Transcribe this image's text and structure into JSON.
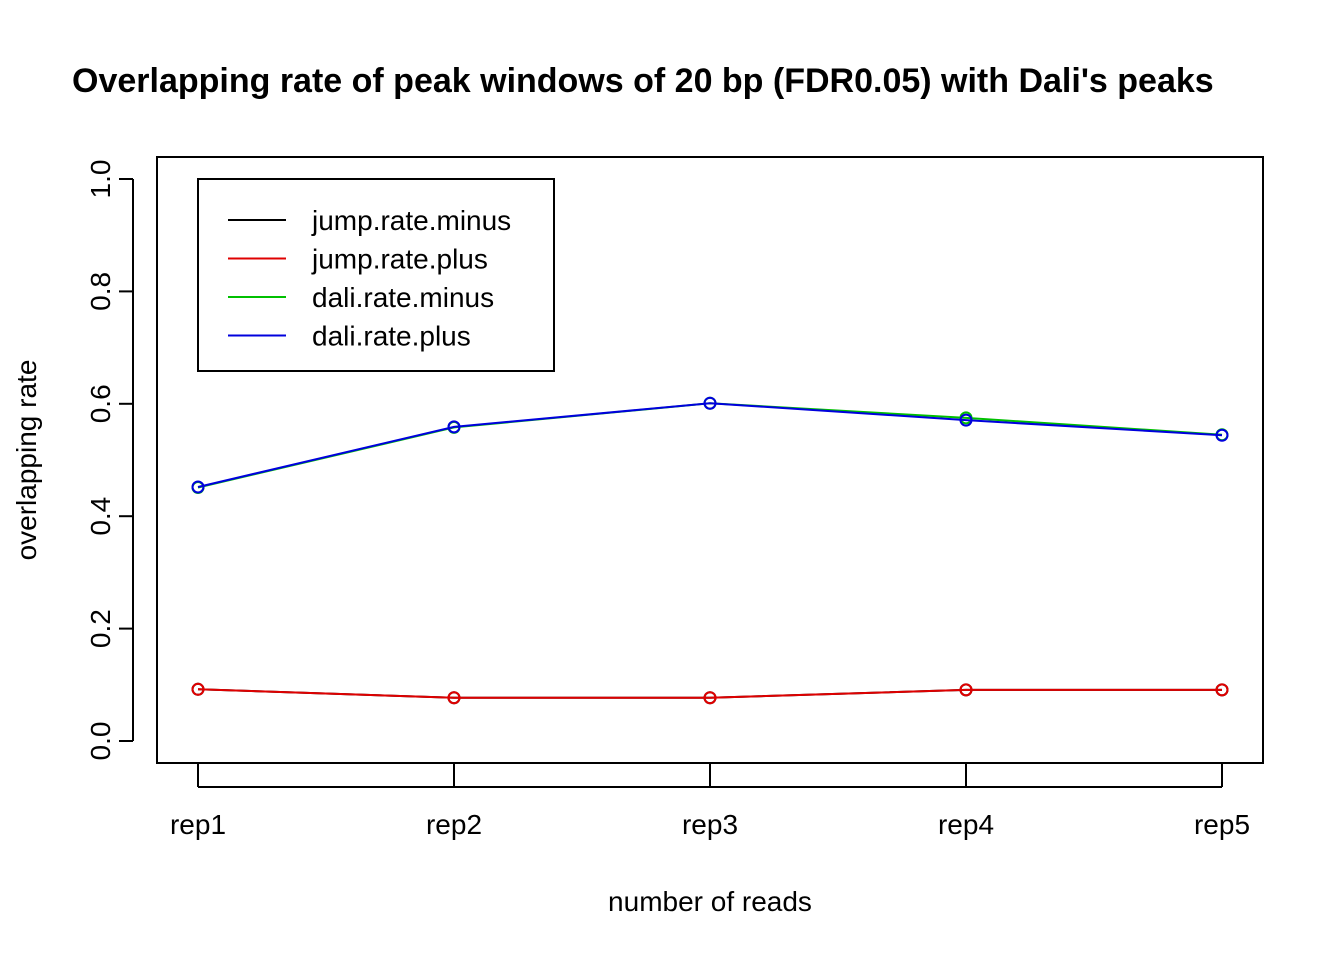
{
  "chart_data": {
    "type": "line",
    "title": "Overlapping rate of peak windows of 20 bp (FDR0.05) with Dali's peaks",
    "xlabel": "number of reads",
    "ylabel": "overlapping rate",
    "categories": [
      "rep1",
      "rep2",
      "rep3",
      "rep4",
      "rep5"
    ],
    "ylim": [
      0,
      1
    ],
    "yticks": [
      0.0,
      0.2,
      0.4,
      0.6,
      0.8,
      1.0
    ],
    "ytick_labels": [
      "0.0",
      "0.2",
      "0.4",
      "0.6",
      "0.8",
      "1.0"
    ],
    "grid": false,
    "legend_position": "top-left",
    "series": [
      {
        "name": "jump.rate.minus",
        "color": "#000000",
        "values": [
          0.092,
          0.077,
          0.077,
          0.091,
          0.091
        ]
      },
      {
        "name": "jump.rate.plus",
        "color": "#DF0000",
        "values": [
          0.092,
          0.077,
          0.077,
          0.091,
          0.091
        ]
      },
      {
        "name": "dali.rate.minus",
        "color": "#00C000",
        "values": [
          0.451,
          0.558,
          0.601,
          0.575,
          0.545
        ]
      },
      {
        "name": "dali.rate.plus",
        "color": "#0000DD",
        "values": [
          0.452,
          0.559,
          0.601,
          0.571,
          0.544
        ]
      }
    ]
  }
}
